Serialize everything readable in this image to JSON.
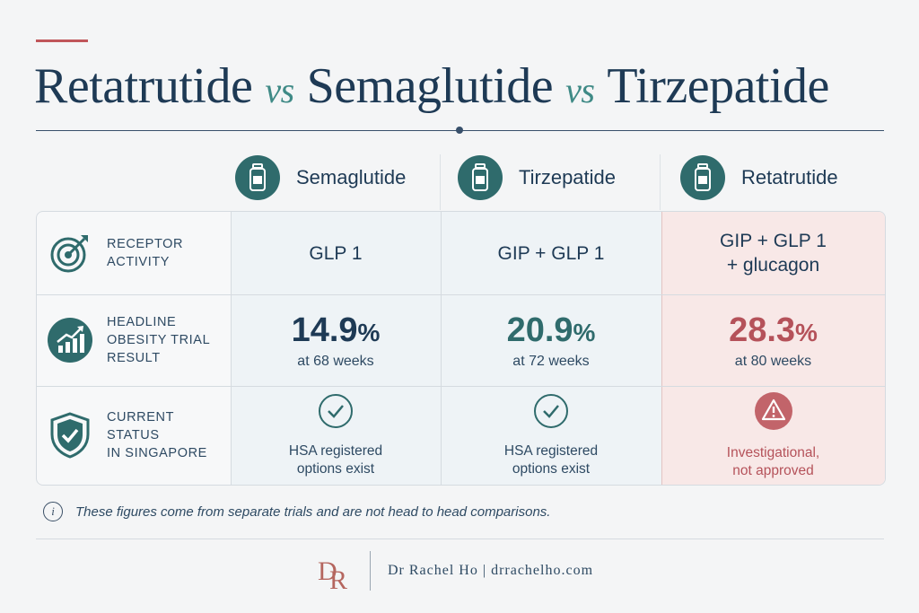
{
  "title": {
    "drug1": "Retatrutide",
    "vs1": "vs",
    "drug2": "Semaglutide",
    "vs2": "vs",
    "drug3": "Tirzepatide"
  },
  "columns": [
    {
      "name": "Semaglutide",
      "icon": "vial-icon"
    },
    {
      "name": "Tirzepatide",
      "icon": "vial-icon"
    },
    {
      "name": "Retatrutide",
      "icon": "vial-icon"
    }
  ],
  "rows": {
    "receptor": {
      "label_line1": "RECEPTOR",
      "label_line2": "ACTIVITY",
      "icon": "target-icon",
      "values": [
        {
          "line1": "GLP 1",
          "line2": ""
        },
        {
          "line1": "GIP + GLP 1",
          "line2": ""
        },
        {
          "line1": "GIP + GLP 1",
          "line2": "+ glucagon"
        }
      ]
    },
    "trial": {
      "label_line1": "HEADLINE",
      "label_line2": "OBESITY TRIAL",
      "label_line3": "RESULT",
      "icon": "chart-growth-icon",
      "values": [
        {
          "number": "14.9",
          "unit": "%",
          "duration": "at 68 weeks"
        },
        {
          "number": "20.9",
          "unit": "%",
          "duration": "at 72 weeks"
        },
        {
          "number": "28.3",
          "unit": "%",
          "duration": "at 80 weeks"
        }
      ]
    },
    "status": {
      "label_line1": "CURRENT STATUS",
      "label_line2": "IN SINGAPORE",
      "icon": "shield-check-icon",
      "values": [
        {
          "icon": "check-circle-icon",
          "line1": "HSA registered",
          "line2": "options exist"
        },
        {
          "icon": "check-circle-icon",
          "line1": "HSA registered",
          "line2": "options exist"
        },
        {
          "icon": "warning-icon",
          "line1": "Investigational,",
          "line2": "not approved"
        }
      ]
    }
  },
  "note": {
    "icon": "info-icon",
    "text": "These figures come from separate trials and are not head to head comparisons."
  },
  "footer": {
    "logo_text": "DR",
    "credit": "Dr Rachel Ho | drrachelho.com"
  },
  "colors": {
    "navy": "#1e3a55",
    "teal": "#2f6b6c",
    "red": "#b5525a",
    "accent": "#c0565a"
  }
}
